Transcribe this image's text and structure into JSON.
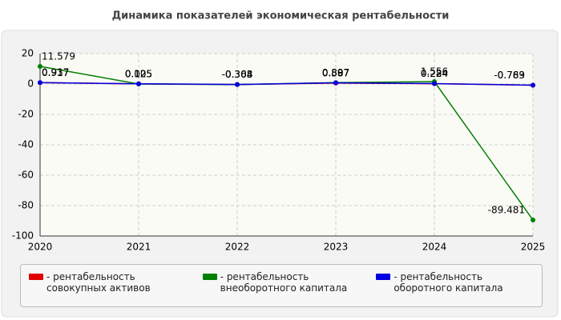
{
  "chart_data": {
    "type": "line",
    "title": "Динамика показателей экономическая рентабельности",
    "categories": [
      "2020",
      "2021",
      "2022",
      "2023",
      "2024",
      "2025"
    ],
    "series": [
      {
        "name": "- рентабельность совокупных активов",
        "color": "#e00000",
        "values": [
          0.937,
          0.105,
          -0.304,
          0.587,
          0.224,
          -0.789
        ]
      },
      {
        "name": "- рентабельность внеоборотного капитала",
        "color": "#008000",
        "values": [
          11.579,
          0.025,
          -0.368,
          0.897,
          1.556,
          -89.481
        ]
      },
      {
        "name": "- рентабельность оборотного капитала",
        "color": "#0000e0",
        "values": [
          0.917,
          0.125,
          -0.303,
          0.807,
          0.284,
          -0.763
        ]
      }
    ],
    "ylim": [
      -100,
      20
    ],
    "yticks": [
      -100,
      -80,
      -60,
      -40,
      -20,
      0,
      20
    ],
    "grid": true
  }
}
